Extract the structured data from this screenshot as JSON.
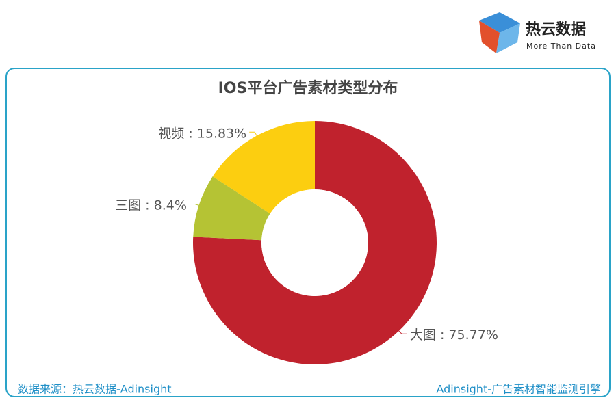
{
  "brand": {
    "name": "热云数据",
    "tagline": "More Than Data"
  },
  "chart_data": {
    "type": "donut",
    "title": "IOS平台广告素材类型分布",
    "categories": [
      "大图",
      "三图",
      "视频"
    ],
    "separator": " : ",
    "values": [
      75.77,
      8.4,
      15.83
    ],
    "value_labels": [
      "75.77%",
      "8.4%",
      "15.83%"
    ],
    "colors": [
      "#c0222d",
      "#b5c334",
      "#fcce10"
    ]
  },
  "footer": {
    "source": "数据来源：热云数据-Adinsight",
    "product": "Adinsight-广告素材智能监测引擎"
  }
}
